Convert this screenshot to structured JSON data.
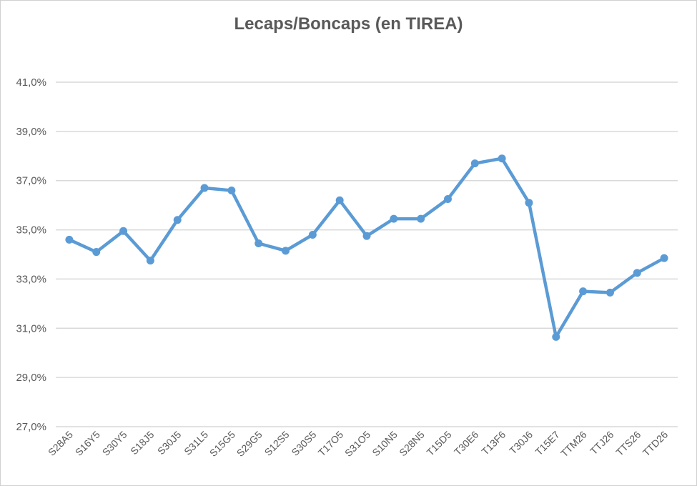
{
  "chart_data": {
    "type": "line",
    "title": "Lecaps/Boncaps (en TIREA)",
    "xlabel": "",
    "ylabel": "",
    "ylim": [
      27.0,
      41.0
    ],
    "yticks": [
      "27,0%",
      "29,0%",
      "31,0%",
      "33,0%",
      "35,0%",
      "37,0%",
      "39,0%",
      "41,0%"
    ],
    "ytick_values": [
      27,
      29,
      31,
      33,
      35,
      37,
      39,
      41
    ],
    "grid": true,
    "legend": "none",
    "categories": [
      "S28A5",
      "S16Y5",
      "S30Y5",
      "S18J5",
      "S30J5",
      "S31L5",
      "S15G5",
      "S29G5",
      "S12S5",
      "S30S5",
      "T17O5",
      "S31O5",
      "S10N5",
      "S28N5",
      "T15D5",
      "T30E6",
      "T13F6",
      "T30J6",
      "T15E7",
      "TTM26",
      "TTJ26",
      "TTS26",
      "TTD26"
    ],
    "series": [
      {
        "values": [
          34.6,
          34.1,
          34.95,
          33.75,
          35.4,
          36.7,
          36.6,
          34.45,
          34.15,
          34.8,
          36.2,
          34.75,
          35.45,
          35.45,
          36.25,
          37.7,
          37.9,
          36.1,
          30.65,
          32.5,
          32.45,
          33.25,
          33.85
        ],
        "color": "#5b9bd5"
      }
    ],
    "gridline_color": "#d9d9d9",
    "text_color": "#595959"
  }
}
